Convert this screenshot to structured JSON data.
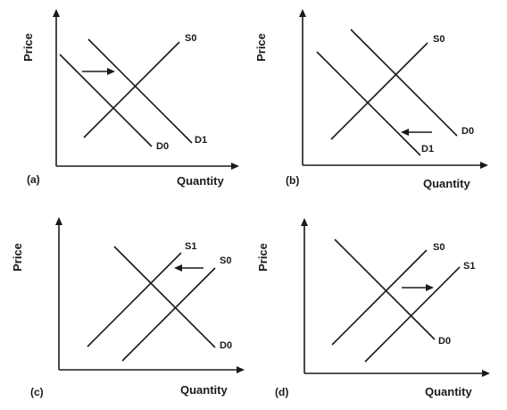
{
  "axis_labels": {
    "y": "Price",
    "x": "Quantity"
  },
  "panels": [
    {
      "id": "a",
      "panel_label": "(a)",
      "curves": [
        "S0",
        "D0",
        "D1"
      ]
    },
    {
      "id": "b",
      "panel_label": "(b)",
      "curves": [
        "S0",
        "D0",
        "D1"
      ]
    },
    {
      "id": "c",
      "panel_label": "(c)",
      "curves": [
        "S1",
        "S0",
        "D0"
      ]
    },
    {
      "id": "d",
      "panel_label": "(d)",
      "curves": [
        "S0",
        "S1",
        "D0"
      ]
    }
  ]
}
